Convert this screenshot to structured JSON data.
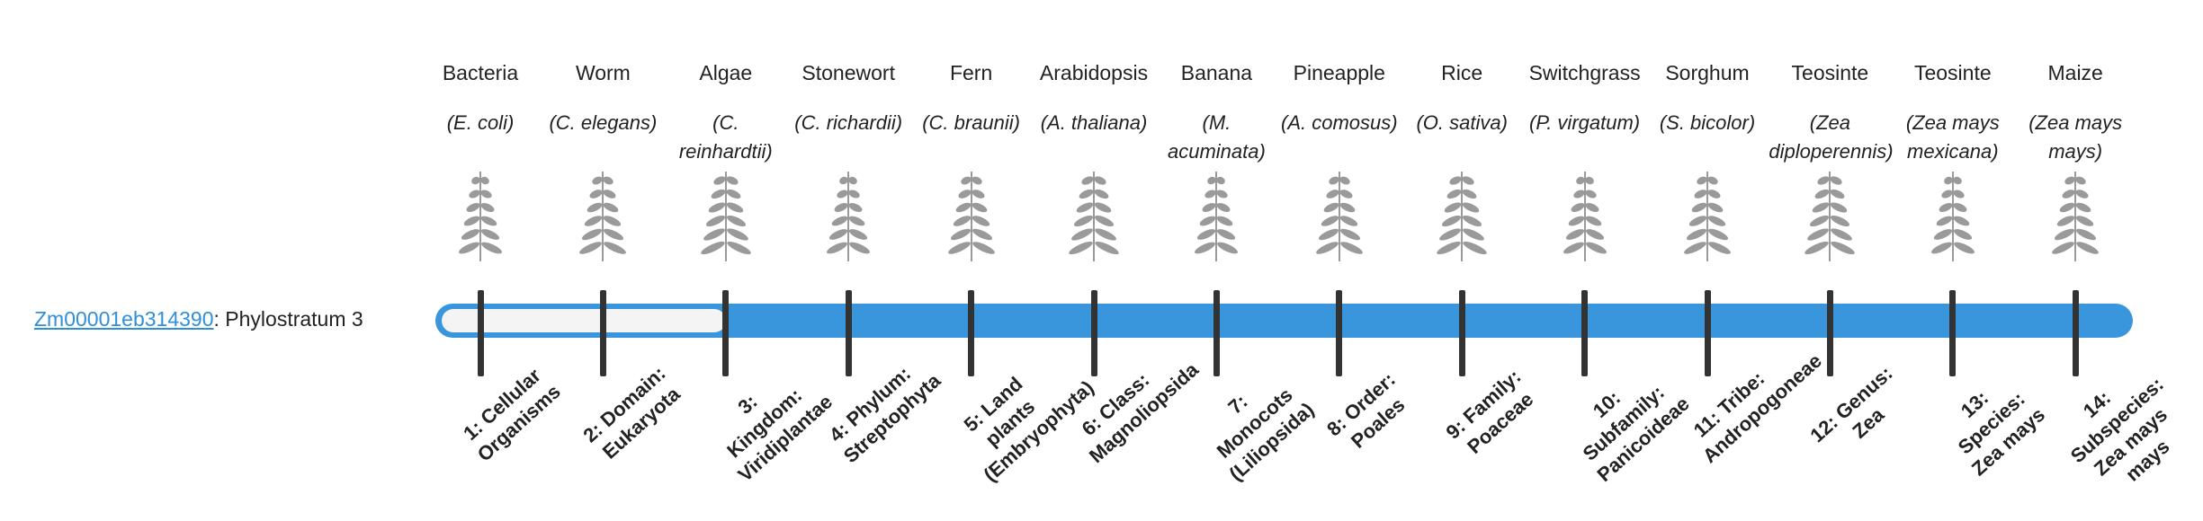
{
  "gene": {
    "id": "Zm00001eb314390",
    "label": ": Phylostratum",
    "phylostratum": 3
  },
  "organisms": [
    {
      "name": "Bacteria",
      "species": "(E. coli)",
      "stratum": "1: Cellular Organisms"
    },
    {
      "name": "Worm",
      "species": "(C. elegans)",
      "stratum": "2: Domain: Eukaryota"
    },
    {
      "name": "Algae",
      "species": "(C. reinhardtii)",
      "stratum": "3: Kingdom: Viridiplantae"
    },
    {
      "name": "Stonewort",
      "species": "(C. richardii)",
      "stratum": "4: Phylum: Streptophyta"
    },
    {
      "name": "Fern",
      "species": "(C. braunii)",
      "stratum": "5: Land plants (Embryophyta)"
    },
    {
      "name": "Arabidopsis",
      "species": "(A. thaliana)",
      "stratum": "6: Class: Magnoliopsida"
    },
    {
      "name": "Banana",
      "species": "(M. acuminata)",
      "stratum": "7: Monocots (Liliopsida)"
    },
    {
      "name": "Pineapple",
      "species": "(A. comosus)",
      "stratum": "8: Order: Poales"
    },
    {
      "name": "Rice",
      "species": "(O. sativa)",
      "stratum": "9: Family: Poaceae"
    },
    {
      "name": "Switchgrass",
      "species": "(P. virgatum)",
      "stratum": "10: Subfamily: Panicoideae"
    },
    {
      "name": "Sorghum",
      "species": "(S. bicolor)",
      "stratum": "11: Tribe: Andropogoneae"
    },
    {
      "name": "Teosinte",
      "species": "(Zea diploperennis)",
      "stratum": "12: Genus: Zea"
    },
    {
      "name": "Teosinte",
      "species": "(Zea mays mexicana)",
      "stratum": "13: Species: Zea mays"
    },
    {
      "name": "Maize",
      "species": "(Zea mays mays)",
      "stratum": "14: Subspecies: Zea mays mays"
    }
  ]
}
